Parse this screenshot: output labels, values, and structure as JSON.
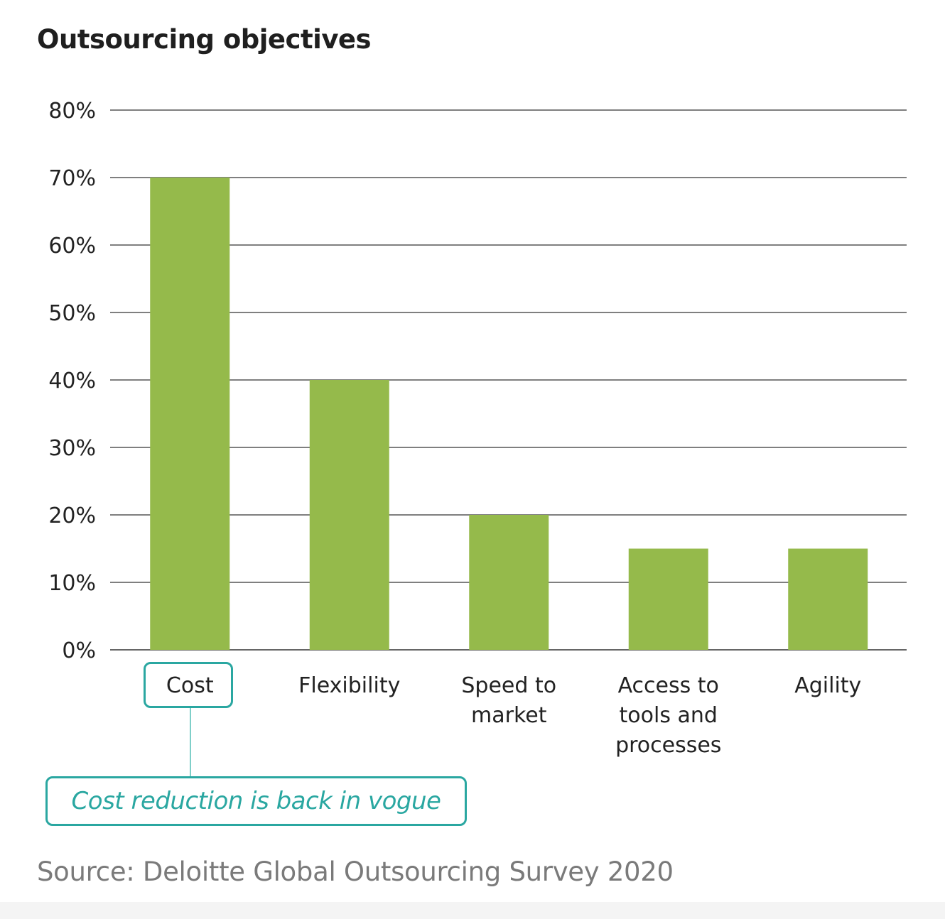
{
  "chart_data": {
    "type": "bar",
    "title": "Outsourcing objectives",
    "categories": [
      "Cost",
      "Flexibility",
      "Speed to market",
      "Access to tools and processes",
      "Agility"
    ],
    "category_label_lines": [
      [
        "Cost"
      ],
      [
        "Flexibility"
      ],
      [
        "Speed to",
        "market"
      ],
      [
        "Access to",
        "tools and",
        "processes"
      ],
      [
        "Agility"
      ]
    ],
    "values": [
      70,
      40,
      20,
      15,
      15
    ],
    "ylim": [
      0,
      80
    ],
    "yticks": [
      0,
      10,
      20,
      30,
      40,
      50,
      60,
      70,
      80
    ],
    "ytick_labels": [
      "0%",
      "10%",
      "20%",
      "30%",
      "40%",
      "50%",
      "60%",
      "70%",
      "80%"
    ],
    "xlabel": "",
    "ylabel": "",
    "grid": true,
    "bar_color": "#95ba4b",
    "gridline_color": "#333333",
    "highlight_category": "Cost",
    "annotation": "Cost reduction is back in vogue",
    "annotation_color": "#2aa7a1"
  },
  "source": "Source: Deloitte Global Outsourcing Survey 2020"
}
